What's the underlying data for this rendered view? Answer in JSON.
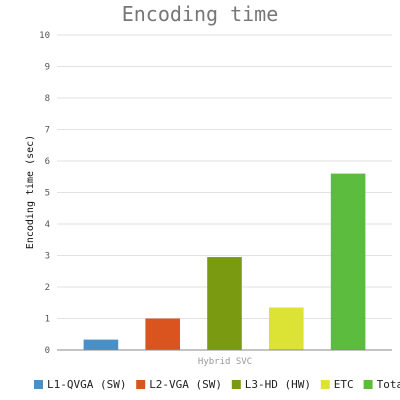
{
  "chart_data": {
    "type": "bar",
    "title": "Encoding time",
    "xlabel": "Hybrid SVC",
    "ylabel": "Encoding time (sec)",
    "ylim": [
      0,
      10
    ],
    "yticks": [
      0,
      1,
      2,
      3,
      4,
      5,
      6,
      7,
      8,
      9,
      10
    ],
    "grid": true,
    "legend_position": "bottom",
    "categories": [
      "Hybrid SVC"
    ],
    "series": [
      {
        "name": "L1-QVGA (SW)",
        "values": [
          0.33
        ],
        "color": "#4a90c8"
      },
      {
        "name": "L2-VGA (SW)",
        "values": [
          1.0
        ],
        "color": "#d9541e"
      },
      {
        "name": "L3-HD (HW)",
        "values": [
          2.95
        ],
        "color": "#7a9a12"
      },
      {
        "name": "ETC",
        "values": [
          1.35
        ],
        "color": "#dde335"
      },
      {
        "name": "Total",
        "values": [
          5.6
        ],
        "color": "#5cbc3e"
      }
    ]
  }
}
